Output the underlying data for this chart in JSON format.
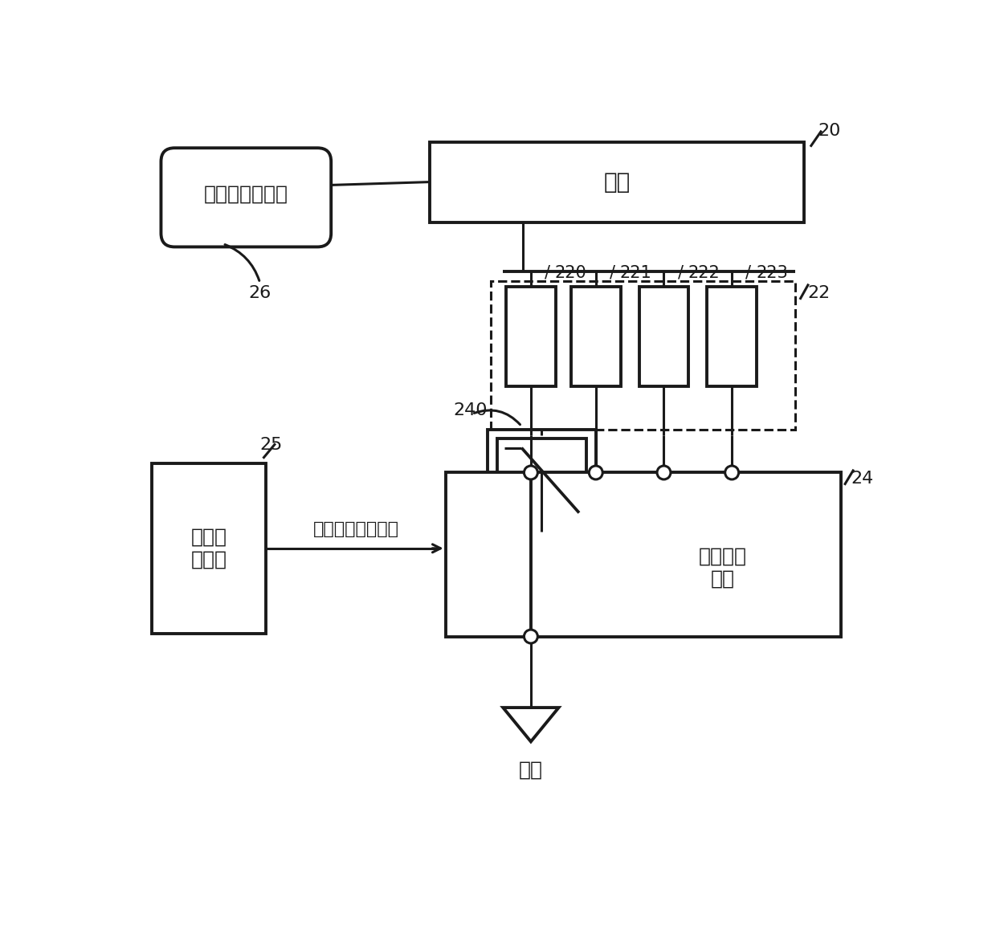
{
  "bg_color": "#ffffff",
  "line_color": "#1a1a1a",
  "lw": 2.2,
  "lw_thick": 2.8,
  "font_color": "#1a1a1a",
  "font_size_large": 18,
  "font_size_medium": 16,
  "font_size_small": 14,
  "labels": {
    "rf_transmitter": "射频信号发射器",
    "antenna": "天线",
    "main_controller": "主控制\n器模块",
    "switch_signal": "开关逻辑控制信号",
    "antenna_tuning": "天线调谐\n开关",
    "ground": "接地",
    "label_20": "20",
    "label_22": "22",
    "label_24": "24",
    "label_25": "25",
    "label_26": "26",
    "label_240": "240",
    "label_220": "220",
    "label_221": "221",
    "label_222": "222",
    "label_223": "223"
  }
}
